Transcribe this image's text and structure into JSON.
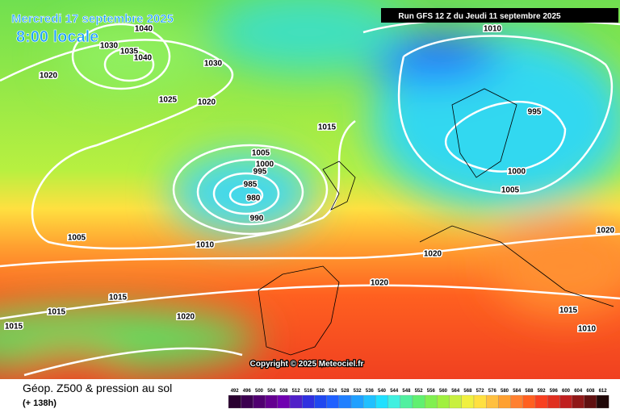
{
  "header": {
    "date": "Mercredi 17 septembre 2025",
    "time": "8:00 locale",
    "run": "Run GFS 12 Z du Jeudi 11 septembre 2025"
  },
  "copyright": "Copyright © 2025 Meteociel.fr",
  "footer": {
    "title": "Géop. Z500 & pression au sol",
    "lead": "(+ 138h)"
  },
  "isobar_labels": [
    "1040",
    "1030",
    "1035",
    "1040",
    "1020",
    "1030",
    "1025",
    "1020",
    "1015",
    "1005",
    "1000",
    "995",
    "985",
    "980",
    "990",
    "1005",
    "1010",
    "1010",
    "995",
    "1000",
    "1005",
    "1020",
    "1020",
    "1020",
    "1015",
    "1015",
    "1015",
    "1020",
    "1015",
    "1010"
  ],
  "legend": {
    "values": [
      492,
      496,
      500,
      504,
      508,
      512,
      516,
      520,
      524,
      528,
      532,
      536,
      540,
      544,
      548,
      552,
      556,
      560,
      564,
      568,
      572,
      576,
      580,
      584,
      588,
      592,
      596,
      600,
      604,
      608,
      612
    ],
    "colors": [
      "#2a0030",
      "#3c0050",
      "#500070",
      "#640090",
      "#7000b0",
      "#5020c8",
      "#3030e0",
      "#2048f0",
      "#2060ff",
      "#2080ff",
      "#20a0ff",
      "#20c0ff",
      "#20e0ff",
      "#40f0e0",
      "#50f0a0",
      "#60f070",
      "#80f050",
      "#a0f040",
      "#c8f040",
      "#f0f040",
      "#ffe040",
      "#ffc040",
      "#ffa030",
      "#ff8030",
      "#ff6020",
      "#f84020",
      "#e03020",
      "#c02020",
      "#901818",
      "#601010",
      "#200808"
    ]
  }
}
